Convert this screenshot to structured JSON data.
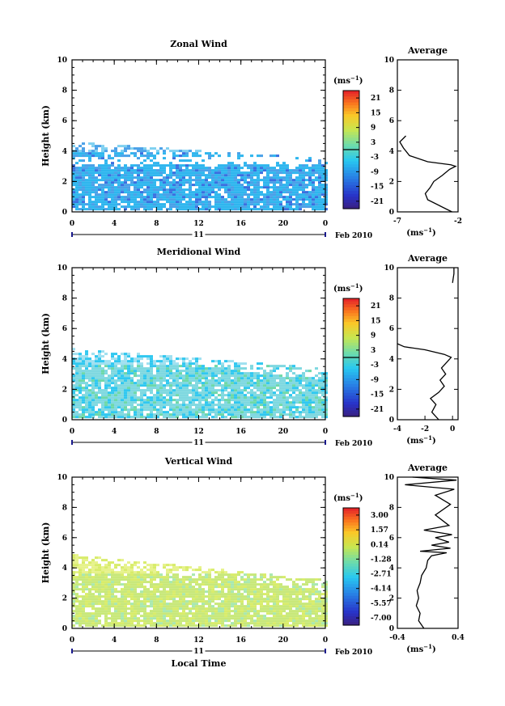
{
  "chart_data": [
    {
      "type": "heatmap",
      "title": "Zonal Wind",
      "ylabel": "Height (km)",
      "y_ticks": [
        "0",
        "2",
        "4",
        "6",
        "8",
        "10"
      ],
      "x_ticks": [
        "0",
        "4",
        "8",
        "12",
        "16",
        "20",
        "0"
      ],
      "ylim": [
        0,
        10
      ],
      "xlim": [
        0,
        24
      ],
      "day_label": "11",
      "date_label": "Feb 2010",
      "colorbar": {
        "unit_label": "(ms",
        "unit_exp": "−1",
        "unit_close": ")",
        "ticks": [
          "21",
          "15",
          "9",
          "3",
          "-3",
          "-9",
          "-15",
          "-21"
        ],
        "range": [
          -24,
          24
        ],
        "zero_line": 0
      },
      "colors": {
        "band_low": "#4aa0e8",
        "band_mid": "#2fb6ee",
        "band_deep": "#3a6fe0",
        "band_top": "#7fd0f0"
      },
      "field": {
        "bottom_km": 0.1,
        "top_km_start": 4.5,
        "top_km_end": 3.4,
        "upper_layer_km": [
          3.8,
          4.5
        ],
        "gap_km": [
          3.1,
          3.6
        ]
      },
      "average": {
        "title": "Average",
        "x_ticks": [
          "-7",
          "-2"
        ],
        "xlim": [
          -7,
          -2
        ],
        "xlabel": "(ms",
        "xlabel_exp": "−1",
        "xlabel_close": ")",
        "profile": [
          [
            -2.5,
            0
          ],
          [
            -3.5,
            0.4
          ],
          [
            -4.5,
            0.8
          ],
          [
            -4.7,
            1.2
          ],
          [
            -4.3,
            1.6
          ],
          [
            -4.0,
            2.0
          ],
          [
            -3.3,
            2.4
          ],
          [
            -2.7,
            2.8
          ],
          [
            -2.2,
            3.0
          ],
          [
            -2.6,
            3.1
          ],
          [
            -4.5,
            3.3
          ],
          [
            -6.0,
            3.7
          ],
          [
            -6.5,
            4.2
          ],
          [
            -6.8,
            4.6
          ],
          [
            -6.3,
            5.0
          ]
        ]
      }
    },
    {
      "type": "heatmap",
      "title": "Meridional Wind",
      "ylabel": "Height (km)",
      "y_ticks": [
        "0",
        "2",
        "4",
        "6",
        "8",
        "10"
      ],
      "x_ticks": [
        "0",
        "4",
        "8",
        "12",
        "16",
        "20",
        "0"
      ],
      "ylim": [
        0,
        10
      ],
      "xlim": [
        0,
        24
      ],
      "day_label": "11",
      "date_label": "Feb 2010",
      "colorbar": {
        "unit_label": "(ms",
        "unit_exp": "−1",
        "unit_close": ")",
        "ticks": [
          "21",
          "15",
          "9",
          "3",
          "-3",
          "-9",
          "-15",
          "-21"
        ],
        "range": [
          -24,
          24
        ],
        "zero_line": 0
      },
      "colors": {
        "band_low": "#30c8f0",
        "band_mid": "#7fd8e0",
        "band_deep": "#6ed8a8",
        "band_top": "#9fe0f0"
      },
      "field": {
        "bottom_km": 0.1,
        "top_km_start": 4.6,
        "top_km_end": 3.3,
        "upper_layer_km": [
          3.6,
          4.6
        ],
        "gap_km": [
          9,
          9
        ]
      },
      "average": {
        "title": "Average",
        "x_ticks": [
          "-4",
          "-2",
          "0"
        ],
        "xlim": [
          -4,
          0.4
        ],
        "xlabel": "(ms",
        "xlabel_exp": "−1",
        "xlabel_close": ")",
        "profile": [
          [
            -1.0,
            0
          ],
          [
            -1.5,
            0.5
          ],
          [
            -1.2,
            1.0
          ],
          [
            -1.6,
            1.4
          ],
          [
            -1.0,
            1.8
          ],
          [
            -0.6,
            2.2
          ],
          [
            -0.9,
            2.6
          ],
          [
            -0.5,
            3.0
          ],
          [
            -0.8,
            3.4
          ],
          [
            -0.4,
            3.8
          ],
          [
            -0.1,
            4.1
          ],
          [
            -0.6,
            4.3
          ],
          [
            -2.0,
            4.6
          ],
          [
            -3.5,
            4.8
          ],
          [
            -4.0,
            5.0
          ]
        ],
        "profile2": [
          [
            0.0,
            9.0
          ],
          [
            0.05,
            9.3
          ],
          [
            0.1,
            9.6
          ],
          [
            0.1,
            10
          ]
        ]
      }
    },
    {
      "type": "heatmap",
      "title": "Vertical Wind",
      "ylabel": "Height (km)",
      "xlabel": "Local Time",
      "y_ticks": [
        "0",
        "2",
        "4",
        "6",
        "8",
        "10"
      ],
      "x_ticks": [
        "0",
        "4",
        "8",
        "12",
        "16",
        "20",
        "0"
      ],
      "ylim": [
        0,
        10
      ],
      "xlim": [
        0,
        24
      ],
      "day_label": "11",
      "date_label": "Feb 2010",
      "colorbar": {
        "unit_label": "(ms",
        "unit_exp": "−1",
        "unit_close": ")",
        "ticks": [
          "3.00",
          "1.57",
          "0.14",
          "-1.28",
          "-2.71",
          "-4.14",
          "-5.57",
          "-7.00"
        ],
        "range": [
          -7.7,
          3.7
        ],
        "zero_line": null
      },
      "colors": {
        "band_low": "#d8ec6a",
        "band_mid": "#c8e87a",
        "band_deep": "#a8e8b0",
        "band_top": "#e6f28a"
      },
      "field": {
        "bottom_km": 0.1,
        "top_km_start": 4.8,
        "top_km_end": 3.1,
        "upper_layer_km": [
          3.6,
          4.8
        ],
        "gap_km": [
          9,
          9
        ]
      },
      "average": {
        "title": "Average",
        "x_ticks": [
          "-0.4",
          "0.4"
        ],
        "xlim": [
          -0.4,
          0.4
        ],
        "xlabel": "(ms",
        "xlabel_exp": "−1",
        "xlabel_close": ")",
        "profile": [
          [
            -0.05,
            0
          ],
          [
            -0.12,
            0.5
          ],
          [
            -0.1,
            1.0
          ],
          [
            -0.15,
            1.5
          ],
          [
            -0.12,
            2.0
          ],
          [
            -0.14,
            2.5
          ],
          [
            -0.1,
            3.0
          ],
          [
            -0.08,
            3.5
          ],
          [
            -0.02,
            4.0
          ],
          [
            0.0,
            4.5
          ],
          [
            0.05,
            4.8
          ],
          [
            0.25,
            5.0
          ],
          [
            -0.1,
            5.1
          ],
          [
            0.3,
            5.3
          ],
          [
            0.05,
            5.5
          ],
          [
            0.28,
            5.7
          ],
          [
            0.1,
            6.0
          ],
          [
            0.32,
            6.2
          ],
          [
            -0.05,
            6.5
          ],
          [
            0.28,
            6.8
          ],
          [
            0.1,
            7.5
          ],
          [
            0.3,
            8.2
          ],
          [
            0.1,
            8.8
          ],
          [
            0.35,
            9.2
          ],
          [
            -0.3,
            9.5
          ],
          [
            0.38,
            9.8
          ],
          [
            -0.2,
            10
          ]
        ]
      }
    }
  ]
}
